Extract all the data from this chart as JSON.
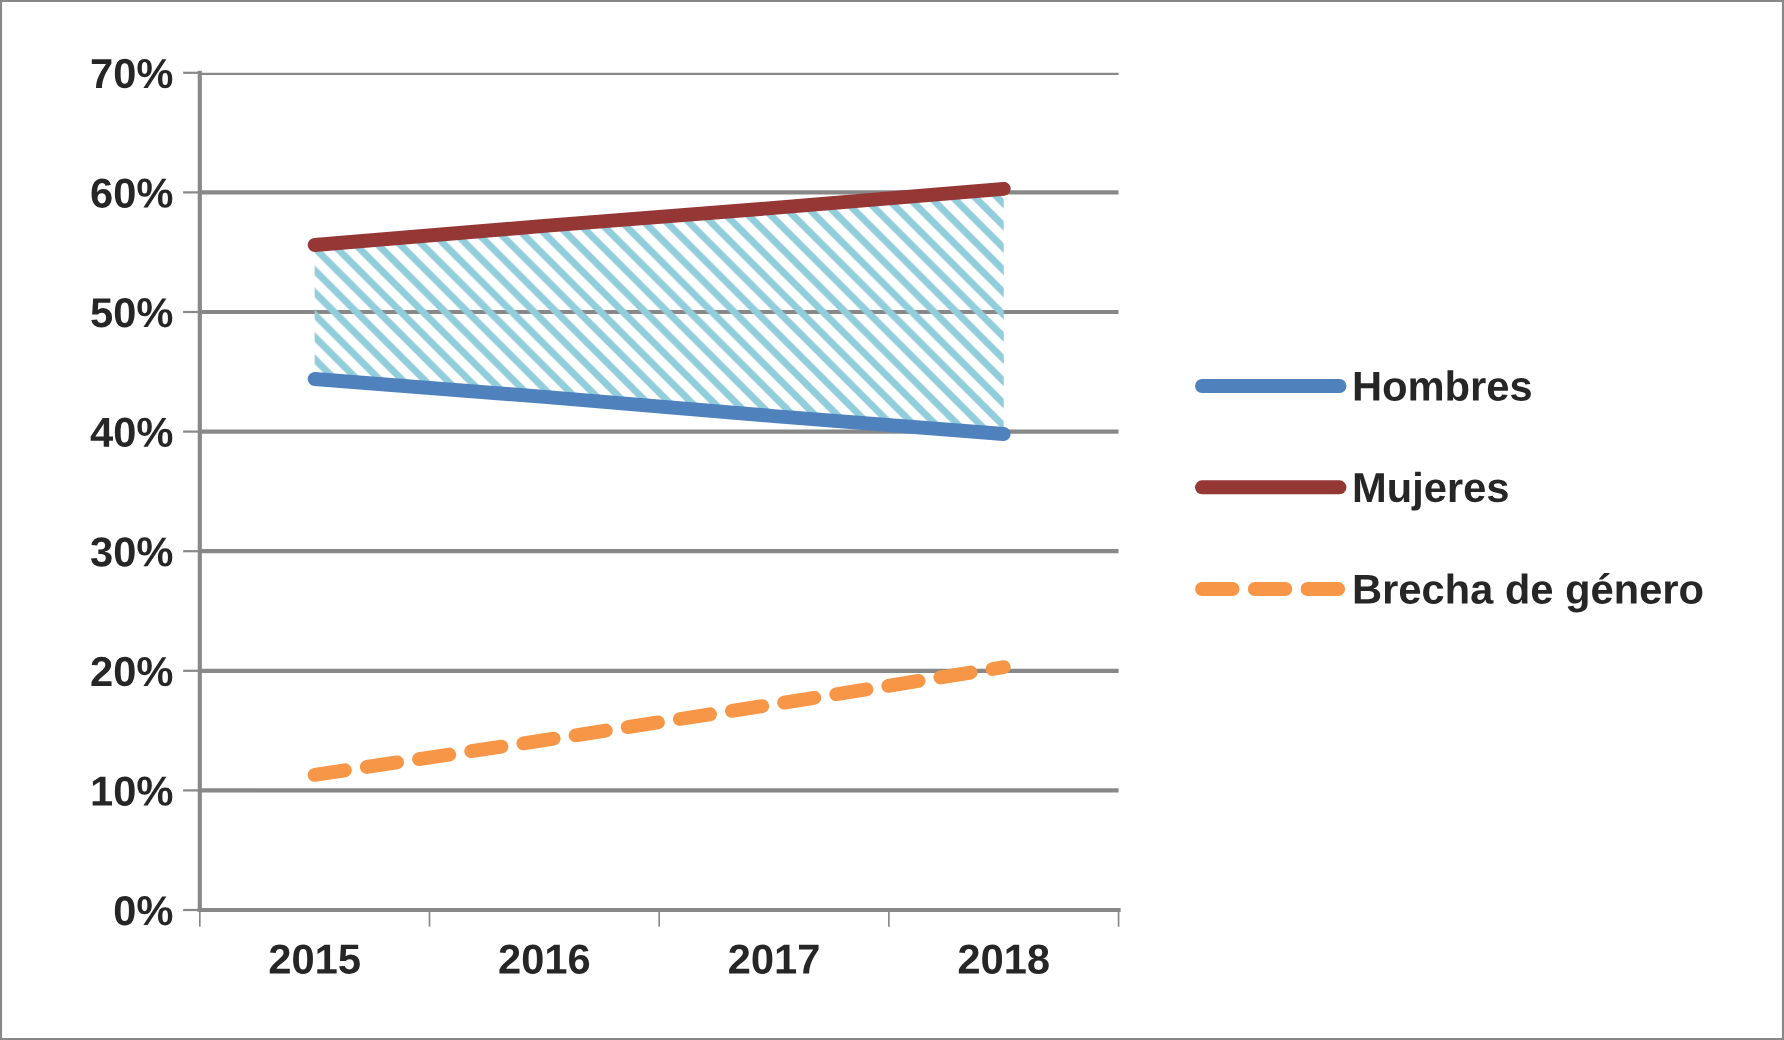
{
  "chart_data": {
    "type": "line",
    "categories": [
      "2015",
      "2016",
      "2017",
      "2018"
    ],
    "series": [
      {
        "name": "Hombres",
        "color": "#4f81bd",
        "values": [
          44.4,
          42.9,
          41.3,
          39.8
        ],
        "line_style": "solid"
      },
      {
        "name": "Mujeres",
        "color": "#953735",
        "values": [
          55.6,
          57.2,
          58.7,
          60.3
        ],
        "line_style": "solid",
        "lower": [
          44.4,
          42.9,
          41.3,
          39.8
        ],
        "upper": [
          55.6,
          57.2,
          58.7,
          60.3
        ]
      },
      {
        "name": "Brecha de género",
        "color": "#f79646",
        "values": [
          11.3,
          14.2,
          17.2,
          20.3
        ],
        "line_style": "dashed"
      }
    ],
    "ylim": [
      0,
      70
    ],
    "yticks": [
      {
        "value": 0,
        "label": "0%"
      },
      {
        "value": 10,
        "label": "10%"
      },
      {
        "value": 20,
        "label": "20%"
      },
      {
        "value": 30,
        "label": "30%"
      },
      {
        "value": 40,
        "label": "40%"
      },
      {
        "value": 50,
        "label": "50%"
      },
      {
        "value": 60,
        "label": "60%"
      },
      {
        "value": 70,
        "label": "70%"
      }
    ],
    "grid": "y",
    "legend": "right",
    "marker": "none"
  }
}
